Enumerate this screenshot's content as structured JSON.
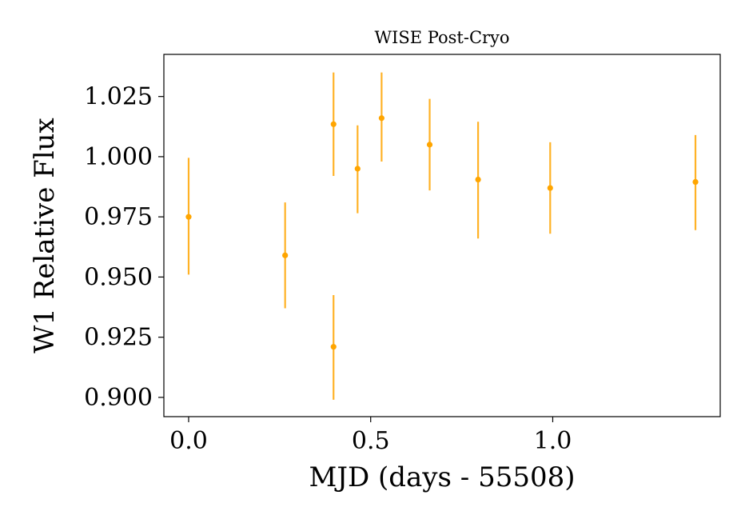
{
  "chart_data": {
    "type": "scatter",
    "title": "WISE Post-Cryo",
    "xlabel": "MJD (days - 55508)",
    "ylabel": "W1 Relative Flux",
    "xlim": [
      -0.068,
      1.46
    ],
    "ylim": [
      0.892,
      1.0425
    ],
    "xticks": [
      0.0,
      0.5,
      1.0
    ],
    "xtick_labels": [
      "0.0",
      "0.5",
      "1.0"
    ],
    "yticks": [
      0.9,
      0.925,
      0.95,
      0.975,
      1.0,
      1.025
    ],
    "ytick_labels": [
      "0.900",
      "0.925",
      "0.950",
      "0.975",
      "1.000",
      "1.025"
    ],
    "grid": false,
    "color": "#ffa500",
    "points": [
      {
        "x": 0.0,
        "y": 0.975,
        "yerr_low": 0.951,
        "yerr_high": 0.9995
      },
      {
        "x": 0.265,
        "y": 0.959,
        "yerr_low": 0.937,
        "yerr_high": 0.981
      },
      {
        "x": 0.398,
        "y": 0.921,
        "yerr_low": 0.899,
        "yerr_high": 0.9425
      },
      {
        "x": 0.398,
        "y": 1.0135,
        "yerr_low": 0.992,
        "yerr_high": 1.035
      },
      {
        "x": 0.464,
        "y": 0.995,
        "yerr_low": 0.9765,
        "yerr_high": 1.013
      },
      {
        "x": 0.53,
        "y": 1.016,
        "yerr_low": 0.998,
        "yerr_high": 1.035
      },
      {
        "x": 0.662,
        "y": 1.005,
        "yerr_low": 0.986,
        "yerr_high": 1.024
      },
      {
        "x": 0.795,
        "y": 0.9905,
        "yerr_low": 0.966,
        "yerr_high": 1.0145
      },
      {
        "x": 0.993,
        "y": 0.987,
        "yerr_low": 0.968,
        "yerr_high": 1.006
      },
      {
        "x": 1.392,
        "y": 0.9895,
        "yerr_low": 0.9695,
        "yerr_high": 1.009
      }
    ]
  }
}
